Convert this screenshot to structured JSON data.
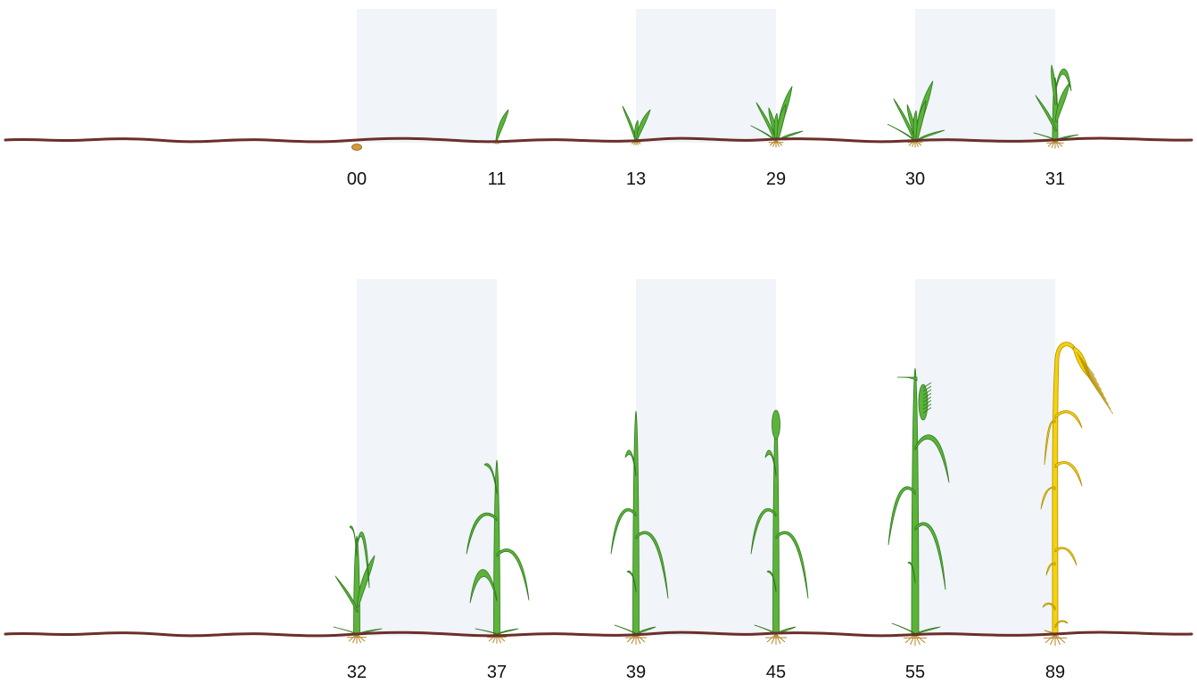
{
  "colors": {
    "soil": "#6b2f2a",
    "band": "#f1f4f8",
    "leaf": "#5cb33a",
    "leaf_dark": "#2e7a1e",
    "ripe": "#f5d20a",
    "ripe_dark": "#b38f00",
    "seed": "#d59a3c",
    "root": "#b5862b"
  },
  "rows": [
    {
      "stages": [
        {
          "code": "00",
          "kind": "seed"
        },
        {
          "code": "11",
          "kind": "sprout"
        },
        {
          "code": "13",
          "kind": "seedling"
        },
        {
          "code": "29",
          "kind": "tillering"
        },
        {
          "code": "30",
          "kind": "tillering-late"
        },
        {
          "code": "31",
          "kind": "first-node"
        }
      ]
    },
    {
      "stages": [
        {
          "code": "32",
          "kind": "second-node"
        },
        {
          "code": "37",
          "kind": "flag-leaf-visible"
        },
        {
          "code": "39",
          "kind": "flag-leaf-full"
        },
        {
          "code": "45",
          "kind": "boot"
        },
        {
          "code": "55",
          "kind": "heading"
        },
        {
          "code": "89",
          "kind": "ripe"
        }
      ]
    }
  ]
}
